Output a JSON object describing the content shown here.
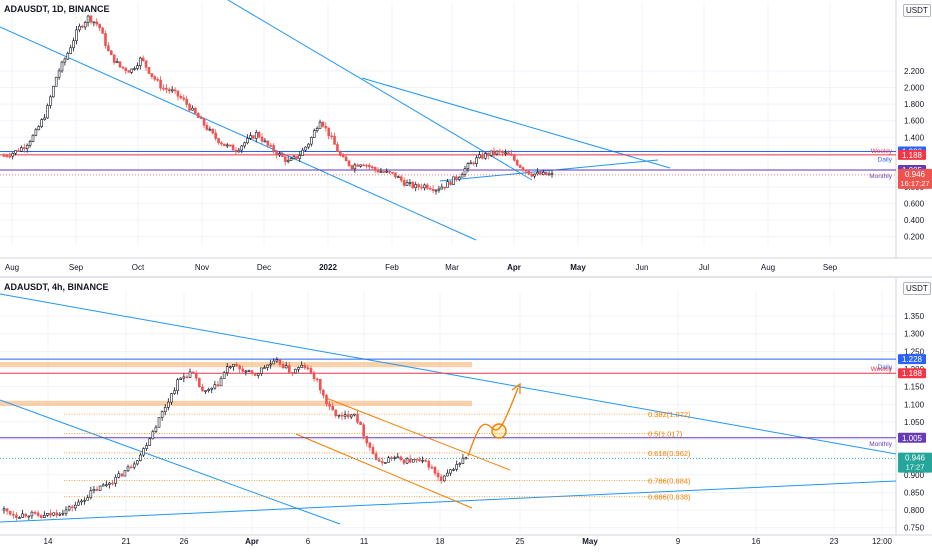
{
  "colors": {
    "up": "#26a69a",
    "down": "#ef5350",
    "candle": "#131722",
    "trend": "#2196f3",
    "daily": "#2962ff",
    "weekly": "#f23645",
    "monthly": "#673ab7",
    "fib": "#f57c00",
    "zone": "#f7c28d",
    "grid": "#f0f3fa",
    "axis": "#131722"
  },
  "chart_data": [
    {
      "type": "candlestick",
      "title": "ADAUSDT, 1D, BINANCE",
      "currency": "USDT",
      "ylim": [
        0.1,
        2.9
      ],
      "y_ticks": [
        "2.200",
        "2.000",
        "1.800",
        "1.600",
        "1.400",
        "1.200",
        "1.000",
        "0.800",
        "0.600",
        "0.400",
        "0.200"
      ],
      "x_ticks": [
        "Aug",
        "Sep",
        "Oct",
        "Nov",
        "Dec",
        "2022",
        "Feb",
        "Mar",
        "Apr",
        "May",
        "Jun",
        "Jul",
        "Aug",
        "Sep"
      ],
      "approx_close_path": [
        1.18,
        1.22,
        1.3,
        1.45,
        1.7,
        2.15,
        2.4,
        2.7,
        2.85,
        2.75,
        2.4,
        2.25,
        2.2,
        2.35,
        2.15,
        2.0,
        1.95,
        1.85,
        1.7,
        1.55,
        1.4,
        1.3,
        1.25,
        1.35,
        1.45,
        1.3,
        1.2,
        1.1,
        1.18,
        1.35,
        1.62,
        1.4,
        1.15,
        1.05,
        1.1,
        1.02,
        0.98,
        0.95,
        0.85,
        0.8,
        0.82,
        0.78,
        0.83,
        0.92,
        1.05,
        1.15,
        1.2,
        1.22,
        1.18,
        1.05,
        0.96,
        0.95,
        0.946
      ],
      "levels": [
        {
          "label": "Daily",
          "value": 1.228,
          "value_label": "1.228",
          "color": "#2962ff"
        },
        {
          "label": "Weekly",
          "value": 1.188,
          "value_label": "1.188",
          "color": "#f23645"
        },
        {
          "label": "Monthly",
          "value": 1.005,
          "value_label": "1.005",
          "color": "#673ab7"
        }
      ],
      "last_price": {
        "value": 0.946,
        "label": "0.946",
        "countdown": "16:17:27",
        "color": "#ef5350"
      }
    },
    {
      "type": "candlestick",
      "title": "ADAUSDT, 4h, BINANCE",
      "currency": "USDT",
      "ylim": [
        0.735,
        1.39
      ],
      "y_ticks": [
        "1.350",
        "1.300",
        "1.250",
        "1.200",
        "1.150",
        "1.100",
        "1.050",
        "1.000",
        "0.950",
        "0.900",
        "0.850",
        "0.800",
        "0.750"
      ],
      "x_ticks": [
        "14",
        "21",
        "26",
        "Apr",
        "6",
        "11",
        "18",
        "25",
        "May",
        "9",
        "16",
        "23",
        "12:00"
      ],
      "approx_close_path": [
        0.8,
        0.785,
        0.79,
        0.78,
        0.79,
        0.8,
        0.82,
        0.85,
        0.87,
        0.89,
        0.92,
        0.96,
        1.03,
        1.1,
        1.17,
        1.19,
        1.13,
        1.15,
        1.21,
        1.2,
        1.18,
        1.21,
        1.22,
        1.19,
        1.21,
        1.17,
        1.09,
        1.06,
        1.08,
        1.0,
        0.93,
        0.95,
        0.94,
        0.94,
        0.93,
        0.88,
        0.92,
        0.95
      ],
      "levels": [
        {
          "label": "Daily",
          "value": 1.228,
          "value_label": "1.228",
          "color": "#2962ff"
        },
        {
          "label": "Weekly",
          "value": 1.188,
          "value_label": "1.188",
          "color": "#f23645"
        },
        {
          "label": "Monthly",
          "value": 1.005,
          "value_label": "1.005",
          "color": "#673ab7"
        }
      ],
      "fib_levels": [
        {
          "label": "0.382(1.072)",
          "value": 1.072
        },
        {
          "label": "0.5(1.017)",
          "value": 1.017
        },
        {
          "label": "0.618(0.962)",
          "value": 0.962
        },
        {
          "label": "0.786(0.884)",
          "value": 0.884
        },
        {
          "label": "0.886(0.838)",
          "value": 0.838
        }
      ],
      "zones": [
        {
          "from": 1.205,
          "to": 1.22
        },
        {
          "from": 1.095,
          "to": 1.11
        }
      ],
      "last_price": {
        "value": 0.946,
        "label": "0.946",
        "countdown": "17:27",
        "color": "#26a69a"
      }
    }
  ]
}
